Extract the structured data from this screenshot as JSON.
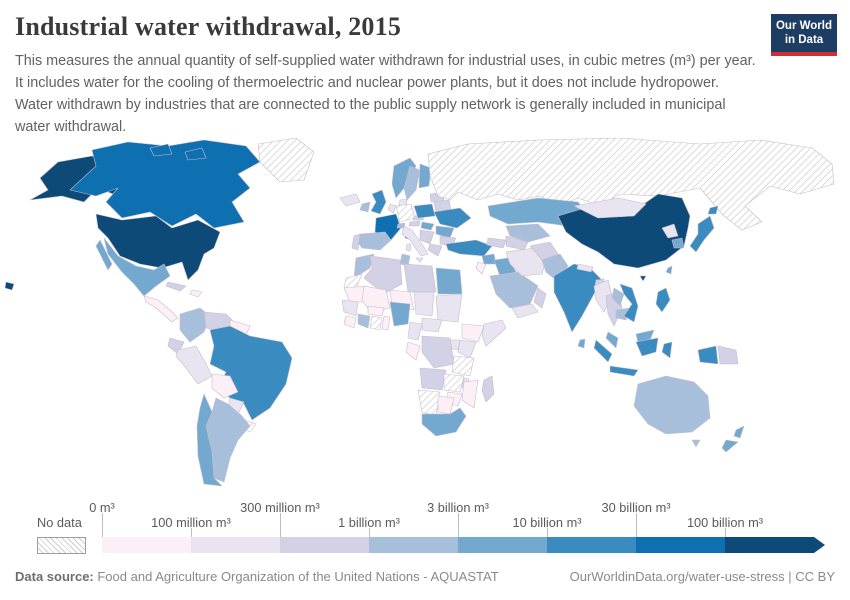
{
  "header": {
    "title": "Industrial water withdrawal, 2015",
    "subtitle": "This measures the annual quantity of self-supplied water withdrawn for industrial uses, in cubic metres (m³) per year. It includes water for the cooling of thermoelectric and nuclear power plants, but it does not include hydropower. Water withdrawn by industries that are connected to the public supply network is generally included in municipal water withdrawal.",
    "logo": {
      "line1": "Our World",
      "line2": "in Data"
    }
  },
  "legend": {
    "no_data_label": "No data",
    "ticks_top": [
      "0 m³",
      "300 million m³",
      "3 billion m³",
      "30 billion m³"
    ],
    "ticks_bottom": [
      "100 million m³",
      "1 billion m³",
      "10 billion m³",
      "100 billion m³"
    ]
  },
  "footer": {
    "source_label": "Data source:",
    "source_text": " Food and Agriculture Organization of the United Nations - AQUASTAT",
    "link_text": "OurWorldinData.org/water-use-stress | CC BY"
  },
  "chart_data": {
    "type": "choropleth",
    "title": "Industrial water withdrawal, 2015",
    "unit": "cubic metres (m³) per year",
    "legend_position": "bottom",
    "palette": [
      "#fcf0f6",
      "#e8e4f0",
      "#d2d1e6",
      "#a8bfdc",
      "#74a9cf",
      "#3a8bc0",
      "#0e70b1",
      "#0d4a78"
    ],
    "no_data": {
      "label": "No data",
      "hatch_line_color": "#cccccc",
      "key": "nd"
    },
    "bins": [
      "0–100 million m³",
      "100–300 million m³",
      "300 million–1 billion m³",
      "1–3 billion m³",
      "3–10 billion m³",
      "10–30 billion m³",
      "30–100 billion m³",
      "100+ billion m³"
    ],
    "countries": {
      "united-states": 7,
      "china": 7,
      "canada": 6,
      "france": 6,
      "brazil": 5,
      "india": 5,
      "indonesia": 5,
      "ukraine": 5,
      "poland": 5,
      "turkey": 5,
      "united-kingdom": 5,
      "japan": 5,
      "vietnam": 5,
      "philippines": 5,
      "mexico": 4,
      "chile": 4,
      "south-africa": 4,
      "egypt": 4,
      "iraq": 4,
      "syria": 4,
      "kazakhstan": 4,
      "norway": 4,
      "finland": 4,
      "south-korea": 4,
      "sri-lanka": 4,
      "malaysia": 4,
      "new-zealand": 4,
      "nigeria": 4,
      "taiwan": 4,
      "romania": 4,
      "hungary": 4,
      "argentina": 3,
      "colombia": 3,
      "spain": 3,
      "sweden": 3,
      "morocco": 3,
      "tunisia": 3,
      "ivory-coast": 3,
      "saudi-arabia": 3,
      "pakistan": 3,
      "uzbekistan": 3,
      "laos": 3,
      "cambodia": 3,
      "switzerland": 3,
      "australia": 3,
      "ireland": 3,
      "venezuela": 2,
      "ecuador": 2,
      "cuba": 2,
      "portugal": 2,
      "greece": 2,
      "bulgaria": 2,
      "belarus": 2,
      "baltics": 2,
      "angola": 2,
      "dr-congo": 2,
      "madagascar": 2,
      "algeria": 2,
      "libya": 2,
      "oman": 2,
      "afghanistan": 2,
      "turkmenistan": 2,
      "bangladesh": 2,
      "thailand": 2,
      "czechia": 2,
      "austria": 2,
      "balkans": 2,
      "caucasus": 2,
      "papua-new-guinea": 2,
      "peru": 1,
      "paraguay": 1,
      "iceland": 1,
      "italy": 1,
      "denmark": 1,
      "benelux": 1,
      "myanmar": 1,
      "mongolia": 1,
      "north-korea": 1,
      "iran": 1,
      "yemen": 1,
      "senegal": 1,
      "chad": 1,
      "sudan": 1,
      "somalia": 1,
      "kenya": 1,
      "uganda": 1,
      "cameroon": 1,
      "malawi": 1,
      "nepal": 1,
      "central-african-republic": 1,
      "bolivia": 0,
      "guyana": 0,
      "central-america": 0,
      "haiti": 0,
      "mauritania": 0,
      "mali": 0,
      "niger": 0,
      "burkina-faso": 0,
      "sierra-leone": 0,
      "togo-benin": 0,
      "gabon-congo": 0,
      "ethiopia": 0,
      "mozambique": 0,
      "zimbabwe": 0,
      "botswana": 0,
      "israel-jordan": 0,
      "russia": "nd",
      "greenland": "nd",
      "germany": "nd",
      "uruguay": "nd",
      "tanzania": "nd",
      "namibia": "nd",
      "western-sahara": "nd",
      "zambia": "nd",
      "ghana": "nd"
    }
  }
}
